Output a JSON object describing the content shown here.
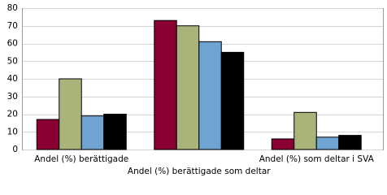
{
  "chart_data": {
    "type": "bar",
    "categories": [
      "Andel (%) berättigade",
      "Andel (%) berättigade som deltar",
      "Andel (%) som deltar i SVA"
    ],
    "series": [
      {
        "color": "#8b0033",
        "values": [
          17,
          73,
          6
        ]
      },
      {
        "color": "#a9b47a",
        "values": [
          40,
          70,
          21
        ]
      },
      {
        "color": "#6fa3d2",
        "values": [
          19,
          61,
          7
        ]
      },
      {
        "color": "#000000",
        "values": [
          20,
          55,
          8
        ]
      }
    ],
    "ylim": [
      0,
      80
    ],
    "yticks": [
      0,
      10,
      20,
      30,
      40,
      50,
      60,
      70,
      80
    ],
    "grid": true
  }
}
